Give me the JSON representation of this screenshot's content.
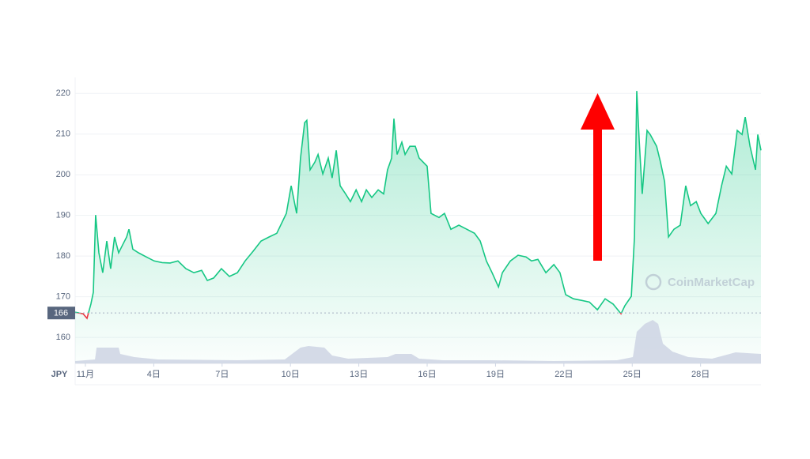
{
  "chart_data": {
    "type": "line",
    "color": "#16c784",
    "below_color": "#ea3943",
    "watermark": "CoinMarketCap",
    "y_unit": "JPY",
    "baseline": {
      "value": 166,
      "label": "166"
    },
    "xlim": [
      -0.45,
      29.65
    ],
    "ylim": [
      153.6,
      222
    ],
    "yticks": [
      160,
      170,
      180,
      190,
      200,
      210,
      220
    ],
    "xticks": [
      {
        "value": 0,
        "label": "11月"
      },
      {
        "value": 3,
        "label": "4日"
      },
      {
        "value": 6,
        "label": "7日"
      },
      {
        "value": 9,
        "label": "10日"
      },
      {
        "value": 12,
        "label": "13日"
      },
      {
        "value": 15,
        "label": "16日"
      },
      {
        "value": 18,
        "label": "19日"
      },
      {
        "value": 21,
        "label": "22日"
      },
      {
        "value": 24,
        "label": "25日"
      },
      {
        "value": 27,
        "label": "28日"
      }
    ],
    "grid": true,
    "x": [
      -0.45,
      -0.1,
      0.07,
      0.24,
      0.35,
      0.45,
      0.59,
      0.76,
      0.94,
      1.11,
      1.28,
      1.46,
      1.63,
      1.81,
      1.91,
      2.08,
      2.33,
      2.67,
      3.02,
      3.37,
      3.72,
      4.06,
      4.41,
      4.76,
      5.1,
      5.35,
      5.63,
      5.97,
      6.32,
      6.67,
      7.01,
      7.36,
      7.71,
      8.06,
      8.4,
      8.82,
      9.03,
      9.27,
      9.44,
      9.62,
      9.72,
      9.86,
      10.07,
      10.21,
      10.42,
      10.66,
      10.83,
      11.01,
      11.18,
      11.42,
      11.63,
      11.88,
      12.12,
      12.33,
      12.57,
      12.85,
      13.09,
      13.26,
      13.44,
      13.54,
      13.68,
      13.89,
      14.03,
      14.24,
      14.48,
      14.65,
      15.0,
      15.17,
      15.52,
      15.76,
      16.04,
      16.39,
      16.74,
      17.08,
      17.33,
      17.6,
      17.85,
      18.13,
      18.3,
      18.65,
      18.99,
      19.34,
      19.58,
      19.86,
      20.21,
      20.56,
      20.83,
      21.08,
      21.42,
      21.77,
      22.12,
      22.47,
      22.81,
      23.16,
      23.51,
      23.68,
      23.96,
      24.1,
      24.2,
      24.31,
      24.44,
      24.65,
      24.79,
      25.07,
      25.24,
      25.42,
      25.59,
      25.83,
      26.11,
      26.35,
      26.56,
      26.81,
      27.01,
      27.33,
      27.67,
      27.92,
      28.13,
      28.37,
      28.61,
      28.82,
      28.96,
      29.17,
      29.41,
      29.51,
      29.65
    ],
    "values": [
      166.2,
      165.8,
      164.7,
      168.2,
      171.1,
      190.1,
      180.8,
      175.9,
      183.7,
      176.9,
      184.7,
      180.8,
      182.7,
      184.7,
      186.6,
      181.7,
      180.8,
      179.8,
      178.8,
      178.4,
      178.3,
      178.8,
      176.9,
      175.9,
      176.5,
      174.0,
      174.6,
      176.9,
      175.0,
      175.9,
      178.8,
      181.2,
      183.7,
      184.7,
      185.6,
      190.5,
      197.3,
      190.5,
      204.1,
      212.8,
      213.4,
      201.2,
      203.1,
      205.0,
      200.2,
      204.1,
      199.2,
      206.0,
      197.3,
      195.3,
      193.4,
      196.3,
      193.4,
      196.3,
      194.4,
      196.3,
      195.3,
      201.2,
      204.1,
      213.8,
      205.0,
      208.0,
      205.0,
      207.0,
      207.0,
      204.1,
      202.1,
      190.5,
      189.5,
      190.5,
      186.6,
      187.6,
      186.6,
      185.6,
      183.7,
      178.8,
      175.9,
      172.4,
      175.9,
      178.8,
      180.2,
      179.8,
      178.8,
      179.2,
      175.9,
      177.9,
      175.9,
      170.5,
      169.5,
      169.1,
      168.7,
      166.8,
      169.5,
      168.2,
      165.8,
      167.8,
      170.1,
      184.7,
      220.6,
      208.0,
      195.3,
      210.9,
      209.9,
      207.0,
      203.1,
      198.3,
      184.7,
      186.6,
      187.6,
      197.3,
      192.4,
      193.4,
      190.5,
      188.0,
      190.5,
      197.3,
      202.1,
      200.2,
      210.9,
      209.9,
      214.2,
      207.0,
      201.2,
      209.9,
      206.0
    ],
    "volume": {
      "color": "#cfd6e4",
      "vlim": [
        0,
        60
      ],
      "x": [
        -0.45,
        0.42,
        0.49,
        1.46,
        1.53,
        2.15,
        3.19,
        6.67,
        8.75,
        9.44,
        9.79,
        10.49,
        10.83,
        11.53,
        13.26,
        13.61,
        14.31,
        14.65,
        15.69,
        17.78,
        20.56,
        23.33,
        24.03,
        24.2,
        24.55,
        24.9,
        25.14,
        25.35,
        25.76,
        26.46,
        27.5,
        28.54,
        29.06,
        29.65
      ],
      "values": [
        3,
        5,
        20,
        20,
        12,
        8,
        5,
        4,
        5,
        20,
        22,
        20,
        10,
        6,
        8,
        12,
        12,
        6,
        4,
        4,
        3,
        4,
        8,
        40,
        50,
        55,
        50,
        25,
        15,
        8,
        6,
        14,
        13,
        12
      ]
    }
  }
}
